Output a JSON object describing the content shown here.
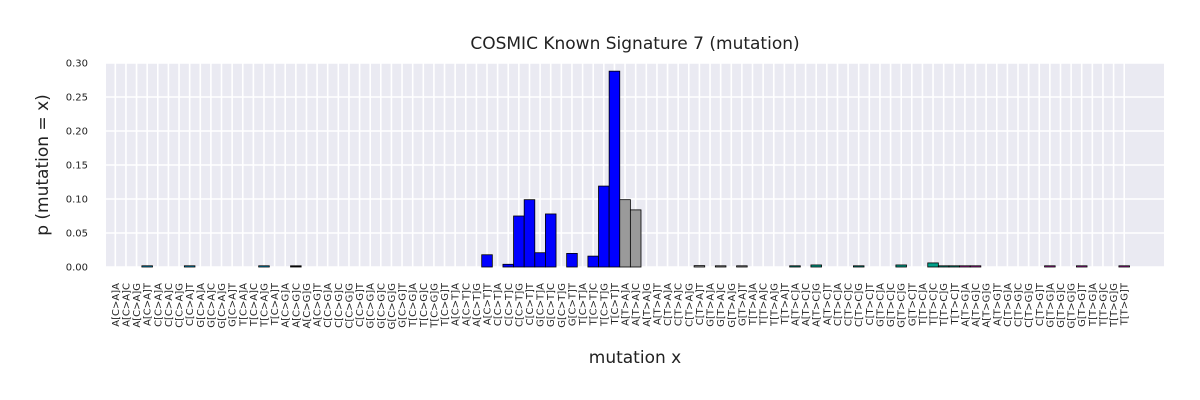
{
  "chart_data": {
    "type": "bar",
    "title": "COSMIC Known Signature 7 (mutation)",
    "xlabel": "mutation x",
    "ylabel": "p (mutation = x)",
    "ylim": [
      0,
      0.3
    ],
    "yticks": [
      "0.00",
      "0.05",
      "0.10",
      "0.15",
      "0.20",
      "0.25",
      "0.30"
    ],
    "grid": true,
    "categories": [
      "A[C>A]A",
      "A[C>A]C",
      "A[C>A]G",
      "A[C>A]T",
      "C[C>A]A",
      "C[C>A]C",
      "C[C>A]G",
      "C[C>A]T",
      "G[C>A]A",
      "G[C>A]C",
      "G[C>A]G",
      "G[C>A]T",
      "T[C>A]A",
      "T[C>A]C",
      "T[C>A]G",
      "T[C>A]T",
      "A[C>G]A",
      "A[C>G]C",
      "A[C>G]G",
      "A[C>G]T",
      "C[C>G]A",
      "C[C>G]C",
      "C[C>G]G",
      "C[C>G]T",
      "G[C>G]A",
      "G[C>G]C",
      "G[C>G]G",
      "G[C>G]T",
      "T[C>G]A",
      "T[C>G]C",
      "T[C>G]G",
      "T[C>G]T",
      "A[C>T]A",
      "A[C>T]C",
      "A[C>T]G",
      "A[C>T]T",
      "C[C>T]A",
      "C[C>T]C",
      "C[C>T]G",
      "C[C>T]T",
      "G[C>T]A",
      "G[C>T]C",
      "G[C>T]G",
      "G[C>T]T",
      "T[C>T]A",
      "T[C>T]C",
      "T[C>T]G",
      "T[C>T]T",
      "A[T>A]A",
      "A[T>A]C",
      "A[T>A]G",
      "A[T>A]T",
      "C[T>A]A",
      "C[T>A]C",
      "C[T>A]G",
      "C[T>A]T",
      "G[T>A]A",
      "G[T>A]C",
      "G[T>A]G",
      "G[T>A]T",
      "T[T>A]A",
      "T[T>A]C",
      "T[T>A]G",
      "T[T>A]T",
      "A[T>C]A",
      "A[T>C]C",
      "A[T>C]G",
      "A[T>C]T",
      "C[T>C]A",
      "C[T>C]C",
      "C[T>C]G",
      "C[T>C]T",
      "G[T>C]A",
      "G[T>C]C",
      "G[T>C]G",
      "G[T>C]T",
      "T[T>C]A",
      "T[T>C]C",
      "T[T>C]G",
      "T[T>C]T",
      "A[T>G]A",
      "A[T>G]C",
      "A[T>G]G",
      "A[T>G]T",
      "C[T>G]A",
      "C[T>G]C",
      "C[T>G]G",
      "C[T>G]T",
      "G[T>G]A",
      "G[T>G]C",
      "G[T>G]G",
      "G[T>G]T",
      "T[T>G]A",
      "T[T>G]C",
      "T[T>G]G",
      "T[T>G]T"
    ],
    "values": [
      0.0,
      0.0,
      0.0,
      0.001,
      0.0,
      0.0,
      0.0,
      0.001,
      0.0,
      0.0,
      0.0,
      0.0,
      0.0,
      0.0,
      0.001,
      0.0,
      0.0,
      0.001,
      0.0,
      0.0,
      0.0,
      0.0,
      0.0,
      0.0,
      0.0,
      0.0,
      0.0,
      0.0,
      0.0,
      0.0,
      0.0,
      0.0,
      0.0,
      0.0,
      0.0,
      0.018,
      0.0,
      0.004,
      0.075,
      0.099,
      0.021,
      0.078,
      0.0,
      0.02,
      0.0,
      0.016,
      0.119,
      0.288,
      0.099,
      0.084,
      0.0,
      0.0,
      0.0,
      0.0,
      0.0,
      0.002,
      0.0,
      0.001,
      0.0,
      0.001,
      0.0,
      0.0,
      0.0,
      0.0,
      0.001,
      0.0,
      0.003,
      0.0,
      0.0,
      0.0,
      0.001,
      0.0,
      0.0,
      0.0,
      0.003,
      0.0,
      0.0,
      0.006,
      0.001,
      0.001,
      0.001,
      0.001,
      0.0,
      0.0,
      0.0,
      0.0,
      0.0,
      0.0,
      0.001,
      0.0,
      0.0,
      0.001,
      0.0,
      0.0,
      0.0,
      0.001
    ],
    "group_colors": {
      "C>A": "#00bfff",
      "C>G": "#111111",
      "C>T": "#0000ff",
      "T>A": "#9a9a9a",
      "T>C": "#00a08a",
      "T>G": "#d020c0"
    },
    "colors": {
      "background": "#eaeaf2",
      "grid": "#ffffff",
      "bar_edge": "#000000"
    }
  }
}
